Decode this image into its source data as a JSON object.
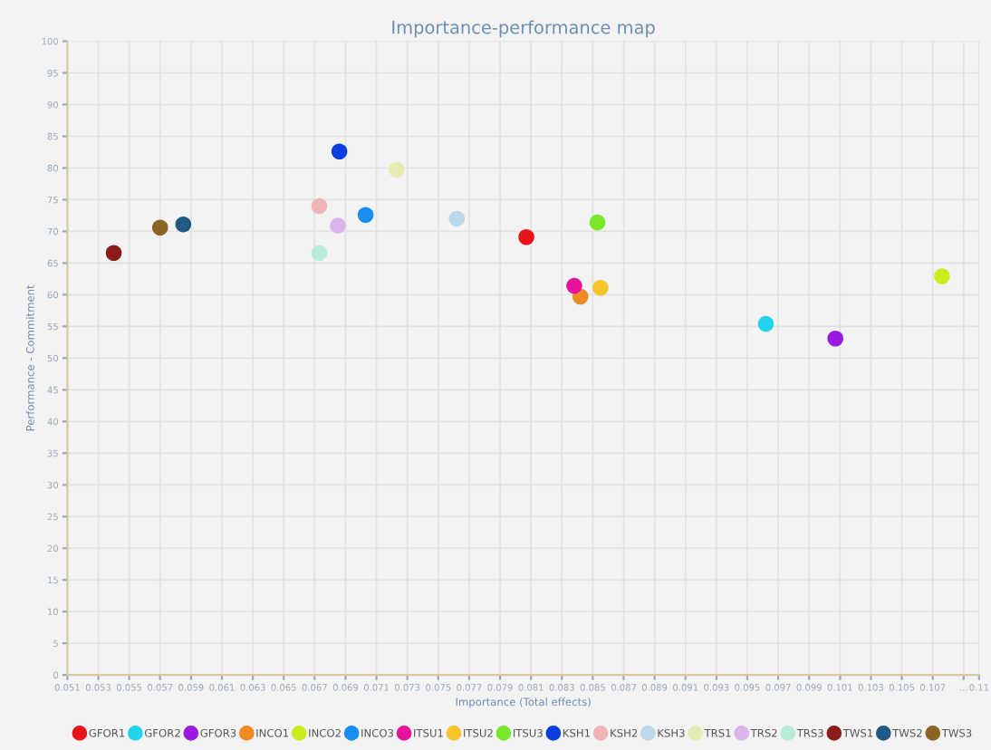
{
  "chart_data": {
    "type": "scatter",
    "title": "Importance-performance map",
    "xlabel": "Importance (Total effects)",
    "ylabel": "Performance - Commitment",
    "xlim": [
      0.051,
      0.11
    ],
    "ylim": [
      0,
      100
    ],
    "xticks": [
      0.051,
      0.053,
      0.055,
      0.057,
      0.059,
      0.061,
      0.063,
      0.065,
      0.067,
      0.069,
      0.071,
      0.073,
      0.075,
      0.077,
      0.079,
      0.081,
      0.083,
      0.085,
      0.087,
      0.089,
      0.091,
      0.093,
      0.095,
      0.097,
      0.099,
      0.101,
      0.103,
      0.105,
      0.107,
      {
        "value": 0.109,
        "label": "..."
      },
      0.11
    ],
    "yticks": [
      0,
      5,
      10,
      15,
      20,
      25,
      30,
      35,
      40,
      45,
      50,
      55,
      60,
      65,
      70,
      75,
      80,
      85,
      90,
      95,
      100
    ],
    "grid": true,
    "legend": "bottom",
    "marker": "circle",
    "series": [
      {
        "name": "GFOR1",
        "color": "#e8141a",
        "x": [
          0.0807
        ],
        "values": [
          69.1
        ]
      },
      {
        "name": "GFOR2",
        "color": "#22d3ee",
        "x": [
          0.0962
        ],
        "values": [
          55.4
        ]
      },
      {
        "name": "GFOR3",
        "color": "#9b19e0",
        "x": [
          0.1007
        ],
        "values": [
          53.1
        ]
      },
      {
        "name": "INCO1",
        "color": "#f08a24",
        "x": [
          0.0842
        ],
        "values": [
          59.7
        ]
      },
      {
        "name": "INCO2",
        "color": "#c8ee1e",
        "x": [
          0.1076
        ],
        "values": [
          62.9
        ]
      },
      {
        "name": "INCO3",
        "color": "#1a8ef0",
        "x": [
          0.0703
        ],
        "values": [
          72.6
        ]
      },
      {
        "name": "ITSU1",
        "color": "#e8139a",
        "x": [
          0.0838
        ],
        "values": [
          61.4
        ]
      },
      {
        "name": "ITSU2",
        "color": "#f7c42a",
        "x": [
          0.0855
        ],
        "values": [
          61.1
        ]
      },
      {
        "name": "ITSU3",
        "color": "#7ae82a",
        "x": [
          0.0853
        ],
        "values": [
          71.4
        ]
      },
      {
        "name": "KSH1",
        "color": "#0a3ee0",
        "x": [
          0.0686
        ],
        "values": [
          82.6
        ]
      },
      {
        "name": "KSH2",
        "color": "#f0b4b4",
        "x": [
          0.0673
        ],
        "values": [
          74.0
        ]
      },
      {
        "name": "KSH3",
        "color": "#bcd7ea",
        "x": [
          0.0762
        ],
        "values": [
          72.0
        ]
      },
      {
        "name": "TRS1",
        "color": "#e8eab4",
        "x": [
          0.0723
        ],
        "values": [
          79.7
        ]
      },
      {
        "name": "TRS2",
        "color": "#dcb4ec",
        "x": [
          0.0685
        ],
        "values": [
          70.9
        ]
      },
      {
        "name": "TRS3",
        "color": "#b8ecd4",
        "x": [
          0.0673
        ],
        "values": [
          66.6
        ]
      },
      {
        "name": "TWS1",
        "color": "#8c1c1c",
        "x": [
          0.054
        ],
        "values": [
          66.6
        ]
      },
      {
        "name": "TWS2",
        "color": "#1f5a85",
        "x": [
          0.0585
        ],
        "values": [
          71.1
        ]
      },
      {
        "name": "TWS3",
        "color": "#8a6424",
        "x": [
          0.057
        ],
        "values": [
          70.6
        ]
      }
    ]
  }
}
